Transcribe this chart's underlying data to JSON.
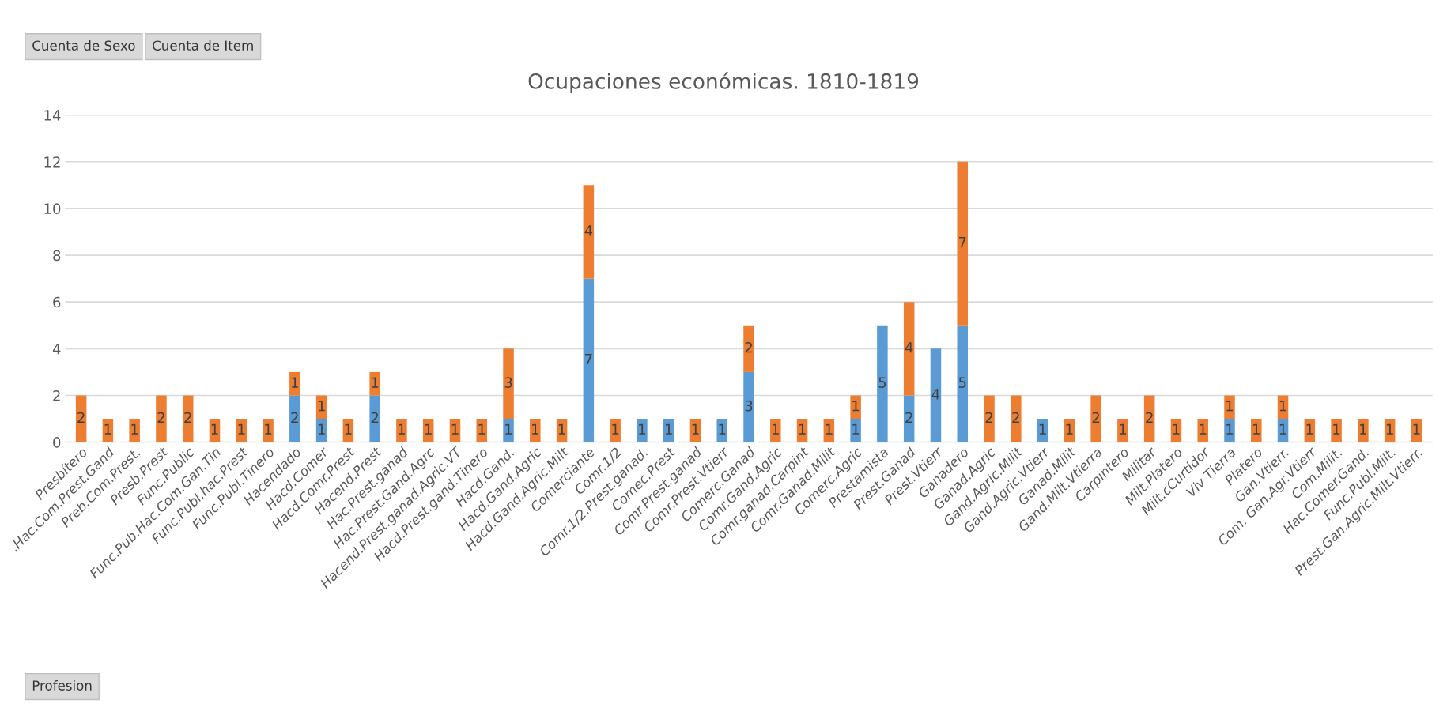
{
  "chart_data": {
    "type": "bar",
    "title": "Ocupaciones económicas. 1810-1819",
    "stacked": true,
    "data_labels": true,
    "grid": "y",
    "legend": false,
    "categories": [
      "Presbítero",
      ".Hac.Com.Prest.Gand",
      "Preb.Com.Prest.",
      "Presb.Prest",
      "Func.Public",
      "Func.Pub.Hac.Com.Gan.Tin",
      "Func.Publ.hac.Prest",
      "Func.Publ.Tinero",
      "Hacendado",
      "Hacd.Comer",
      "Hacd.Comr.Prest",
      "Hacend.Prest",
      "Hac.Prest.ganad",
      "Hac.Prest.Gand.Agrc",
      "Hacend.Prest.ganad.Agric.VT",
      "Hacd.Prest.gand.Tinero",
      "Hacd.Gand.",
      "Hacd.Gand.Agric",
      "Hacd.Gand.Agric.Milt",
      "Comerciante",
      "Comr.1/2",
      "Comr.1/2.Prest.ganad.",
      "Comec.Prest",
      "Comr.Prest.ganad",
      "Comr.Prest.Vtierr",
      "Comerc.Ganad",
      "Comr.Gand.Agric",
      "Comr.ganad.Carpint",
      "Comr.Ganad.Milit",
      "Comerc.Agric",
      "Prestamista",
      "Prest.Ganad",
      "Prest.Vtierr",
      "Ganadero",
      "Ganad.Agric",
      "Gand.Agric.Milit",
      "Gand.Agric.Vtierr",
      "Ganad.Milit",
      "Gand.Milt.Vtierra",
      "Carpintero",
      "Militar",
      "Milt.Platero",
      "Milt.cCurtidor",
      "Viv Tierra",
      "Platero",
      "Gan.Vtierr.",
      "Com. Gan.Agr.Vtierr",
      "Com.Milit.",
      "Hac.Comer.Gand.",
      "Func.Publ.Milt.",
      "Prest.Gan.Agric.Milt.Vtierr."
    ],
    "series": [
      {
        "color": "#5b9bd5",
        "values": [
          null,
          null,
          null,
          null,
          null,
          null,
          null,
          null,
          2,
          1,
          null,
          2,
          null,
          null,
          null,
          null,
          1,
          null,
          null,
          7,
          null,
          1,
          1,
          null,
          1,
          3,
          null,
          null,
          null,
          1,
          5,
          2,
          4,
          5,
          null,
          null,
          1,
          null,
          null,
          null,
          null,
          null,
          null,
          1,
          null,
          1,
          null,
          null,
          null,
          null,
          null
        ]
      },
      {
        "color": "#ed7d31",
        "values": [
          2,
          1,
          1,
          2,
          2,
          1,
          1,
          1,
          1,
          1,
          1,
          1,
          1,
          1,
          1,
          1,
          3,
          1,
          1,
          4,
          1,
          null,
          null,
          1,
          null,
          2,
          1,
          1,
          1,
          1,
          null,
          4,
          null,
          7,
          2,
          2,
          null,
          1,
          2,
          1,
          2,
          1,
          1,
          1,
          1,
          1,
          1,
          1,
          1,
          1,
          1
        ]
      }
    ],
    "ylim": [
      0,
      14
    ],
    "yticks": [
      0,
      2,
      4,
      6,
      8,
      10,
      12,
      14
    ],
    "annotations": [
      "Cuenta de Sexo",
      "Cuenta de Item",
      "Profesion"
    ]
  }
}
